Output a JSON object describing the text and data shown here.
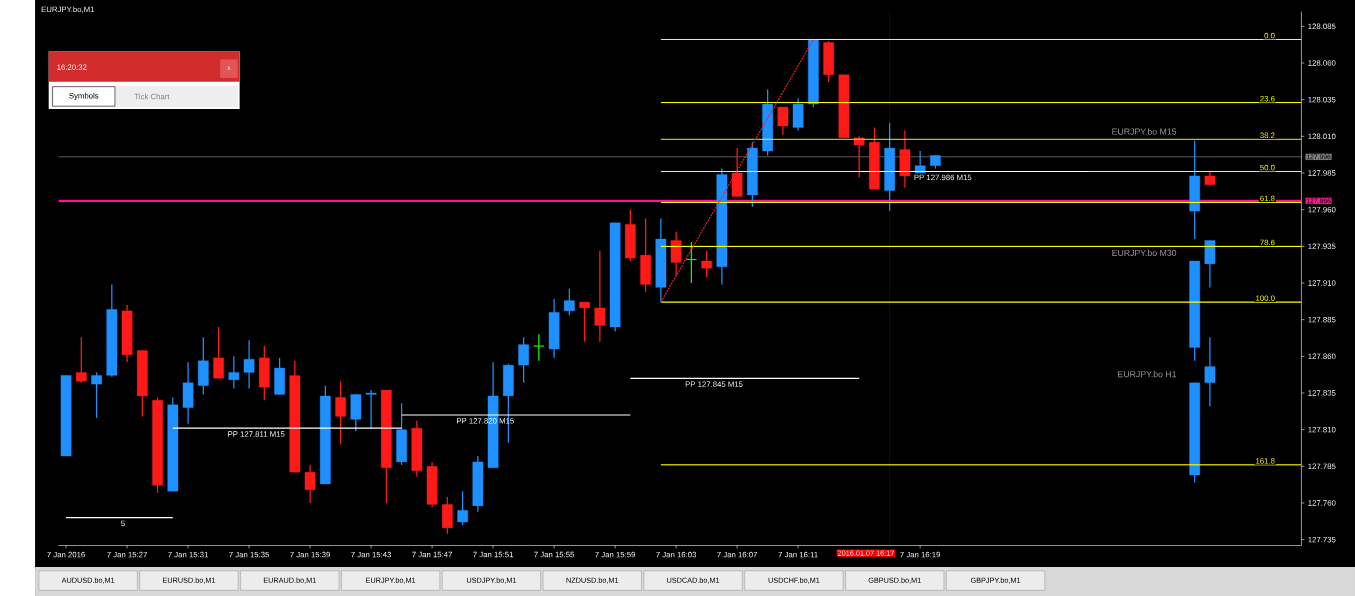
{
  "chart_data": {
    "type": "candlestick",
    "title": "EURJPY.bo,M1",
    "xlim": [
      "2016-01-07T15:22:30",
      "2016-01-07T16:44"
    ],
    "xticks": [
      {
        "value": "2016-01-07T15:23",
        "label": "7 Jan 2016"
      },
      {
        "value": "2016-01-07T15:27",
        "label": "7 Jan 15:27"
      },
      {
        "value": "2016-01-07T15:31",
        "label": "7 Jan 15:31"
      },
      {
        "value": "2016-01-07T15:35",
        "label": "7 Jan 15:35"
      },
      {
        "value": "2016-01-07T15:39",
        "label": "7 Jan 15:39"
      },
      {
        "value": "2016-01-07T15:43",
        "label": "7 Jan 15:43"
      },
      {
        "value": "2016-01-07T15:47",
        "label": "7 Jan 15:47"
      },
      {
        "value": "2016-01-07T15:51",
        "label": "7 Jan 15:51"
      },
      {
        "value": "2016-01-07T15:55",
        "label": "7 Jan 15:55"
      },
      {
        "value": "2016-01-07T15:59",
        "label": "7 Jan 15:59"
      },
      {
        "value": "2016-01-07T16:03",
        "label": "7 Jan 16:03"
      },
      {
        "value": "2016-01-07T16:07",
        "label": "7 Jan 16:07"
      },
      {
        "value": "2016-01-07T16:11",
        "label": "7 Jan 16:11"
      },
      {
        "value": "2016-01-07T16:19",
        "label": "7 Jan 16:19"
      }
    ],
    "ylim": [
      127.731,
      128.095
    ],
    "yticks": [
      127.735,
      {
        "value": 127.76,
        "label": "127.760"
      },
      127.785,
      {
        "value": 127.81,
        "label": "127.810"
      },
      127.835,
      {
        "value": 127.86,
        "label": "127.860"
      },
      127.885,
      {
        "value": 127.91,
        "label": "127.910"
      },
      127.935,
      {
        "value": 127.96,
        "label": "127.960"
      },
      127.985,
      {
        "value": 128.01,
        "label": "128.010"
      },
      128.035,
      {
        "value": 128.06,
        "label": "128.060"
      },
      128.085
    ],
    "series": [
      {
        "type": "candlestick",
        "x": [
          "2016-01-07T15:23",
          "2016-01-07T15:24",
          "2016-01-07T15:25",
          "2016-01-07T15:26",
          "2016-01-07T15:27",
          "2016-01-07T15:28",
          "2016-01-07T15:29",
          "2016-01-07T15:30",
          "2016-01-07T15:31",
          "2016-01-07T15:32",
          "2016-01-07T15:33",
          "2016-01-07T15:34",
          "2016-01-07T15:35",
          "2016-01-07T15:36",
          "2016-01-07T15:37",
          "2016-01-07T15:38",
          "2016-01-07T15:39",
          "2016-01-07T15:40",
          "2016-01-07T15:41",
          "2016-01-07T15:42",
          "2016-01-07T15:43",
          "2016-01-07T15:44",
          "2016-01-07T15:45",
          "2016-01-07T15:46",
          "2016-01-07T15:47",
          "2016-01-07T15:48",
          "2016-01-07T15:49",
          "2016-01-07T15:50",
          "2016-01-07T15:51",
          "2016-01-07T15:52",
          "2016-01-07T15:53",
          "2016-01-07T15:54",
          "2016-01-07T15:55",
          "2016-01-07T15:56",
          "2016-01-07T15:57",
          "2016-01-07T15:58",
          "2016-01-07T15:59",
          "2016-01-07T16:00",
          "2016-01-07T16:01",
          "2016-01-07T16:02",
          "2016-01-07T16:03",
          "2016-01-07T16:04",
          "2016-01-07T16:05",
          "2016-01-07T16:06",
          "2016-01-07T16:07",
          "2016-01-07T16:08",
          "2016-01-07T16:09",
          "2016-01-07T16:10",
          "2016-01-07T16:11",
          "2016-01-07T16:12",
          "2016-01-07T16:13",
          "2016-01-07T16:14",
          "2016-01-07T16:15",
          "2016-01-07T16:16",
          "2016-01-07T16:17",
          "2016-01-07T16:18",
          "2016-01-07T16:19",
          "2016-01-07T16:20"
        ],
        "ohlc": [
          [
            127.792,
            127.847,
            127.792,
            127.847
          ],
          [
            127.849,
            127.873,
            127.842,
            127.843
          ],
          [
            127.841,
            127.849,
            127.818,
            127.847
          ],
          [
            127.847,
            127.909,
            127.846,
            127.892
          ],
          [
            127.891,
            127.895,
            127.856,
            127.861
          ],
          [
            127.864,
            127.864,
            127.819,
            127.833
          ],
          [
            127.83,
            127.832,
            127.767,
            127.772
          ],
          [
            127.768,
            127.832,
            127.768,
            127.827
          ],
          [
            127.825,
            127.856,
            127.814,
            127.842
          ],
          [
            127.84,
            127.873,
            127.834,
            127.857
          ],
          [
            127.859,
            127.88,
            127.845,
            127.845
          ],
          [
            127.844,
            127.86,
            127.838,
            127.849
          ],
          [
            127.849,
            127.871,
            127.838,
            127.858
          ],
          [
            127.859,
            127.867,
            127.83,
            127.839
          ],
          [
            127.834,
            127.859,
            127.834,
            127.852
          ],
          [
            127.847,
            127.857,
            127.781,
            127.781
          ],
          [
            127.781,
            127.786,
            127.76,
            127.769
          ],
          [
            127.773,
            127.84,
            127.773,
            127.833
          ],
          [
            127.832,
            127.843,
            127.8,
            127.819
          ],
          [
            127.817,
            127.834,
            127.809,
            127.834
          ],
          [
            127.834,
            127.837,
            127.811,
            127.835
          ],
          [
            127.837,
            127.837,
            127.76,
            127.784
          ],
          [
            127.788,
            127.828,
            127.786,
            127.81
          ],
          [
            127.811,
            127.816,
            127.778,
            127.782
          ],
          [
            127.785,
            127.788,
            127.757,
            127.759
          ],
          [
            127.759,
            127.764,
            127.739,
            127.743
          ],
          [
            127.747,
            127.768,
            127.745,
            127.755
          ],
          [
            127.758,
            127.792,
            127.754,
            127.788
          ],
          [
            127.784,
            127.856,
            127.784,
            127.833
          ],
          [
            127.833,
            127.855,
            127.801,
            127.854
          ],
          [
            127.854,
            127.873,
            127.842,
            127.868
          ],
          [
            127.867,
            127.875,
            127.857,
            127.867
          ],
          [
            127.865,
            127.899,
            127.859,
            127.89
          ],
          [
            127.891,
            127.906,
            127.888,
            127.898
          ],
          [
            127.897,
            127.897,
            127.87,
            127.893
          ],
          [
            127.893,
            127.932,
            127.87,
            127.881
          ],
          [
            127.88,
            127.951,
            127.877,
            127.951
          ],
          [
            127.95,
            127.96,
            127.925,
            127.927
          ],
          [
            127.929,
            127.954,
            127.904,
            127.909
          ],
          [
            127.907,
            127.954,
            127.897,
            127.94
          ],
          [
            127.939,
            127.945,
            127.915,
            127.924
          ],
          [
            127.926,
            127.938,
            127.91,
            127.926
          ],
          [
            127.925,
            127.932,
            127.914,
            127.92
          ],
          [
            127.921,
            127.988,
            127.909,
            127.984
          ],
          [
            127.985,
            128.002,
            127.969,
            127.969
          ],
          [
            127.97,
            128.006,
            127.962,
            128.002
          ],
          [
            128.0,
            128.042,
            127.997,
            128.032
          ],
          [
            128.03,
            128.03,
            128.011,
            128.017
          ],
          [
            128.016,
            128.036,
            128.014,
            128.032
          ],
          [
            128.032,
            128.076,
            128.03,
            128.076
          ],
          [
            128.074,
            128.075,
            128.047,
            128.052
          ],
          [
            128.052,
            128.052,
            128.009,
            128.009
          ],
          [
            128.009,
            128.01,
            127.982,
            128.004
          ],
          [
            128.006,
            128.016,
            127.974,
            127.974
          ],
          [
            127.973,
            128.019,
            127.959,
            128.002
          ],
          [
            128.001,
            128.014,
            127.975,
            127.983
          ],
          [
            127.985,
            128.0,
            127.985,
            127.99
          ],
          [
            127.99,
            127.997,
            127.988,
            127.997
          ]
        ],
        "colors": [
          "#1e90ff",
          "#ff1a1a",
          "#1e90ff",
          "#1e90ff",
          "#ff1a1a",
          "#ff1a1a",
          "#ff1a1a",
          "#1e90ff",
          "#1e90ff",
          "#1e90ff",
          "#ff1a1a",
          "#1e90ff",
          "#1e90ff",
          "#ff1a1a",
          "#1e90ff",
          "#ff1a1a",
          "#ff1a1a",
          "#1e90ff",
          "#ff1a1a",
          "#1e90ff",
          "#1e90ff",
          "#ff1a1a",
          "#1e90ff",
          "#ff1a1a",
          "#ff1a1a",
          "#ff1a1a",
          "#1e90ff",
          "#1e90ff",
          "#1e90ff",
          "#1e90ff",
          "#1e90ff",
          "#00ff00",
          "#1e90ff",
          "#1e90ff",
          "#ff1a1a",
          "#ff1a1a",
          "#1e90ff",
          "#ff1a1a",
          "#ff1a1a",
          "#1e90ff",
          "#ff1a1a",
          "#00ff00",
          "#ff1a1a",
          "#1e90ff",
          "#ff1a1a",
          "#1e90ff",
          "#1e90ff",
          "#ff1a1a",
          "#1e90ff",
          "#1e90ff",
          "#ff1a1a",
          "#ff1a1a",
          "#ff1a1a",
          "#ff1a1a",
          "#1e90ff",
          "#ff1a1a",
          "#1e90ff",
          "#1e90ff"
        ]
      },
      {
        "type": "candlestick",
        "x": [
          "2016-01-07T16:37",
          "2016-01-07T16:38",
          "2016-01-07T16:37",
          "2016-01-07T16:38",
          "2016-01-07T16:37",
          "2016-01-07T16:38"
        ],
        "ohlc": [
          [
            127.959,
            128.007,
            127.94,
            127.983
          ],
          [
            127.983,
            127.986,
            127.977,
            127.977
          ],
          [
            127.866,
            127.925,
            127.857,
            127.925
          ],
          [
            127.923,
            127.939,
            127.907,
            127.939
          ],
          [
            127.779,
            127.842,
            127.774,
            127.842
          ],
          [
            127.842,
            127.873,
            127.826,
            127.853
          ]
        ],
        "colors": [
          "#1e90ff",
          "#ff1a1a",
          "#1e90ff",
          "#1e90ff",
          "#1e90ff",
          "#1e90ff"
        ]
      },
      {
        "type": "line",
        "name": "0.0",
        "color": "#ffff00",
        "x": [
          "2016-01-07T16:02",
          "2016-01-07T16:44"
        ],
        "values": [
          128.076,
          128.076
        ]
      },
      {
        "type": "line",
        "name": "23.6",
        "color": "#ffff00",
        "x": [
          "2016-01-07T16:02",
          "2016-01-07T16:44"
        ],
        "values": [
          128.033,
          128.033
        ]
      },
      {
        "type": "line",
        "name": "38.2",
        "color": "#ffff00",
        "x": [
          "2016-01-07T16:02",
          "2016-01-07T16:44"
        ],
        "values": [
          128.008,
          128.008
        ]
      },
      {
        "type": "line",
        "name": "50.0",
        "color": "#ffff00",
        "x": [
          "2016-01-07T16:02",
          "2016-01-07T16:44"
        ],
        "values": [
          127.986,
          127.986
        ]
      },
      {
        "type": "line",
        "name": "61.8",
        "color": "#ffff00",
        "x": [
          "2016-01-07T16:02",
          "2016-01-07T16:44"
        ],
        "values": [
          127.965,
          127.965
        ]
      },
      {
        "type": "line",
        "name": "78.6",
        "color": "#ffff00",
        "x": [
          "2016-01-07T16:02",
          "2016-01-07T16:44"
        ],
        "values": [
          127.935,
          127.935
        ]
      },
      {
        "type": "line",
        "name": "100.0",
        "color": "#ffff00",
        "x": [
          "2016-01-07T16:02",
          "2016-01-07T16:44"
        ],
        "values": [
          127.897,
          127.897
        ]
      },
      {
        "type": "line",
        "name": "161.8",
        "color": "#ffff00",
        "x": [
          "2016-01-07T16:02",
          "2016-01-07T16:44"
        ],
        "values": [
          127.786,
          127.786
        ]
      },
      {
        "type": "line",
        "color": "#ff1a1a",
        "line_style": "dotted",
        "x": [
          "2016-01-07T16:02",
          "2016-01-07T16:12"
        ],
        "values": [
          127.897,
          128.076
        ]
      },
      {
        "type": "line",
        "name": "5",
        "color": "#ffffff",
        "x": [
          "2016-01-07T15:23",
          "2016-01-07T15:30"
        ],
        "values": [
          127.75,
          127.75
        ]
      },
      {
        "type": "line",
        "name": "PP 127.811 M15",
        "color": "#ffffff",
        "x": [
          "2016-01-07T15:30",
          "2016-01-07T15:45"
        ],
        "values": [
          127.811,
          127.811
        ]
      },
      {
        "type": "line",
        "name": "PP 127.820 M15",
        "color": "#ffffff",
        "x": [
          "2016-01-07T15:45",
          "2016-01-07T16:00"
        ],
        "values": [
          127.82,
          127.82
        ]
      },
      {
        "type": "line",
        "name": "PP 127.845 M15",
        "color": "#ffffff",
        "x": [
          "2016-01-07T16:00",
          "2016-01-07T16:15"
        ],
        "values": [
          127.845,
          127.845
        ]
      },
      {
        "type": "line",
        "name": "PP 127.986 M15",
        "color": "#ffffff",
        "x": [
          "2016-01-07T16:15",
          "2016-01-07T16:30"
        ],
        "values": [
          127.986,
          127.986
        ]
      }
    ],
    "ref_lines": [
      {
        "axis": "x",
        "value": "2016-01-07T16:17",
        "label": "2016.01.07 16:17",
        "color": "#ff0000"
      },
      {
        "axis": "y",
        "value": 127.996,
        "label": "127.996",
        "color": "#808080"
      },
      {
        "axis": "y",
        "value": 127.966,
        "label": "127.966",
        "color": "#ff1493"
      }
    ],
    "annotations": [
      "16:20:32",
      "x",
      "Symbols",
      "Tick Chart",
      "AUDUSD.bo,M1",
      "EURUSD.bo,M1",
      "EURAUD.bo,M1",
      "EURJPY.bo,M1",
      "USDJPY.bo,M1",
      "NZDUSD.bo,M1",
      "USDCAD.bo,M1",
      "USDCHF.bo,M1",
      "GBPUSD.bo,M1",
      "GBPJPY.bo,M1",
      "EURJPY.bo M15",
      "EURJPY.bo M30",
      "EURJPY.bo H1"
    ]
  }
}
